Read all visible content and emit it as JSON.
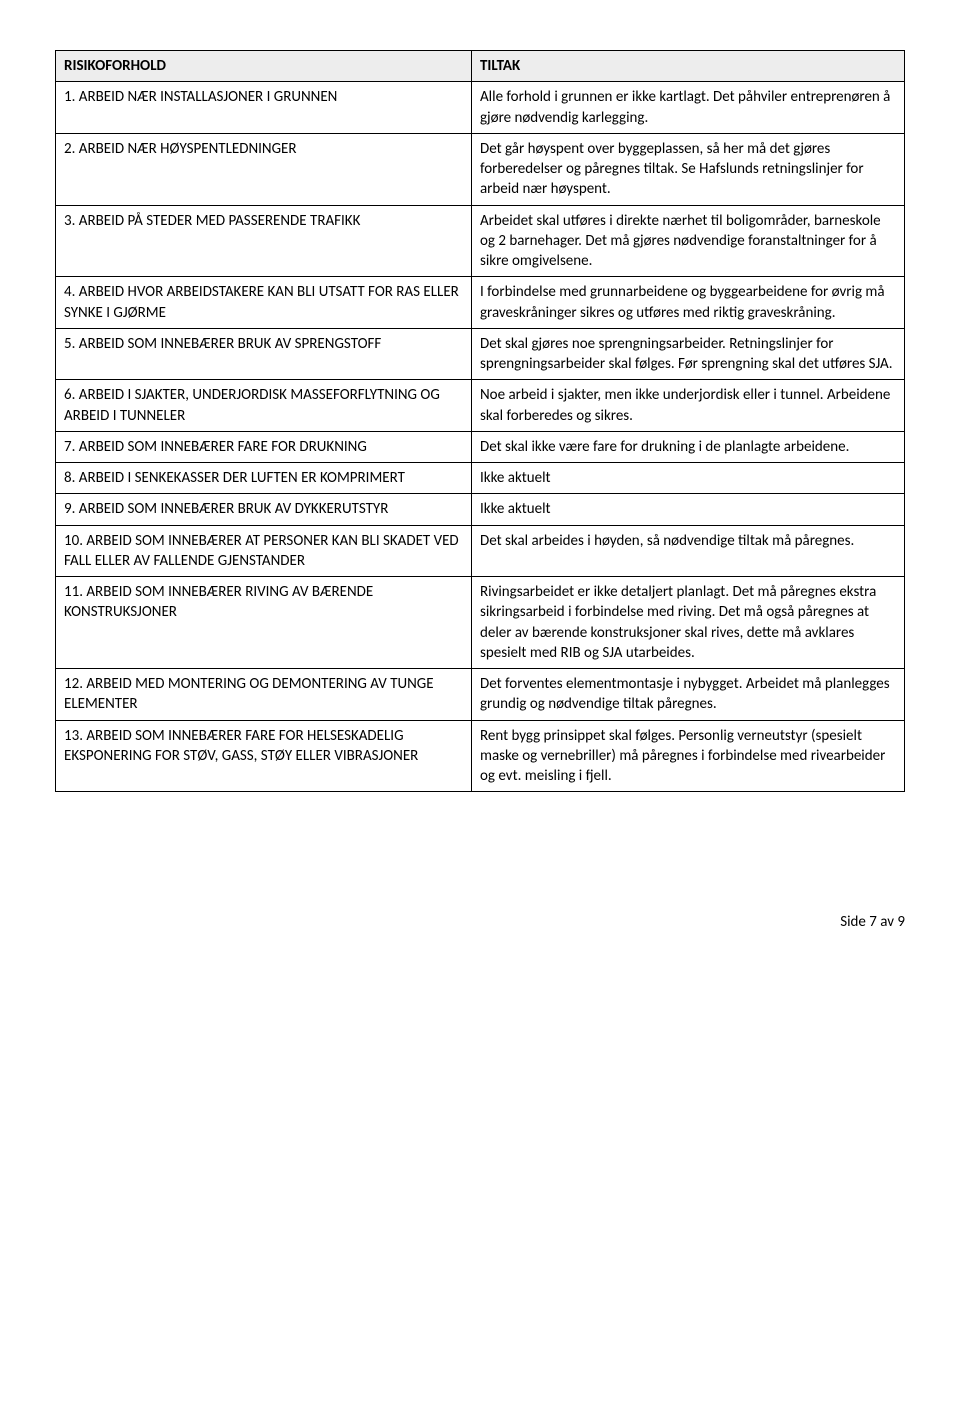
{
  "header": {
    "risk": "RISIKOFORHOLD",
    "action": "TILTAK"
  },
  "rows": [
    {
      "risk": "1. ARBEID NÆR INSTALLASJONER I GRUNNEN",
      "action": "Alle forhold i grunnen er ikke kartlagt. Det påhviler entreprenøren å gjøre nødvendig karlegging."
    },
    {
      "risk": "2. ARBEID NÆR HØYSPENTLEDNINGER",
      "action": "Det går høyspent over byggeplassen, så her må det gjøres forberedelser og påregnes tiltak. Se Hafslunds retningslinjer for arbeid nær høyspent."
    },
    {
      "risk": "3. ARBEID PÅ STEDER MED PASSERENDE TRAFIKK",
      "action": "Arbeidet skal utføres i direkte nærhet til boligområder, barneskole og 2 barnehager. Det må gjøres nødvendige foranstaltninger for å sikre omgivelsene."
    },
    {
      "risk": "4. ARBEID HVOR ARBEIDSTAKERE KAN BLI UTSATT FOR RAS ELLER SYNKE I GJØRME",
      "action": "I forbindelse med grunnarbeidene og byggearbeidene for øvrig må graveskråninger sikres og utføres med riktig graveskråning."
    },
    {
      "risk": "5. ARBEID SOM INNEBÆRER BRUK AV SPRENGSTOFF",
      "action": "Det skal gjøres noe sprengningsarbeider. Retningslinjer for sprengningsarbeider skal følges. Før sprengning skal det utføres SJA."
    },
    {
      "risk": "6. ARBEID I SJAKTER, UNDERJORDISK MASSEFORFLYTNING OG ARBEID I TUNNELER",
      "action": "Noe arbeid i sjakter, men ikke underjordisk eller i tunnel. Arbeidene skal forberedes og sikres."
    },
    {
      "risk": "7. ARBEID SOM INNEBÆRER FARE FOR DRUKNING",
      "action": "Det skal ikke være fare for drukning i de planlagte arbeidene."
    },
    {
      "risk": "8. ARBEID I SENKEKASSER DER LUFTEN ER KOMPRIMERT",
      "action": "Ikke aktuelt"
    },
    {
      "risk": "9. ARBEID SOM INNEBÆRER BRUK AV DYKKERUTSTYR",
      "action": "Ikke aktuelt"
    },
    {
      "risk": "10. ARBEID SOM INNEBÆRER AT PERSONER KAN BLI SKADET VED FALL ELLER AV FALLENDE GJENSTANDER",
      "action": "Det skal arbeides i høyden, så nødvendige tiltak må påregnes."
    },
    {
      "risk": "11. ARBEID SOM INNEBÆRER RIVING AV BÆRENDE KONSTRUKSJONER",
      "action": "Rivingsarbeidet er ikke detaljert planlagt. Det må påregnes ekstra sikringsarbeid i forbindelse med riving. Det må også påregnes at deler av bærende konstruksjoner skal rives, dette må avklares spesielt med RIB og SJA utarbeides."
    },
    {
      "risk": "12. ARBEID MED MONTERING OG DEMONTERING AV TUNGE ELEMENTER",
      "action": "Det forventes elementmontasje i nybygget. Arbeidet må planlegges grundig og nødvendige tiltak påregnes."
    },
    {
      "risk": "13. ARBEID SOM INNEBÆRER FARE FOR HELSESKADELIG EKSPONERING FOR STØV, GASS, STØY ELLER VIBRASJONER",
      "action": "Rent bygg prinsippet skal følges. Personlig verneutstyr (spesielt maske og vernebriller) må påregnes i forbindelse med rivearbeider og evt. meisling i fjell."
    }
  ],
  "footer": "Side 7 av 9"
}
